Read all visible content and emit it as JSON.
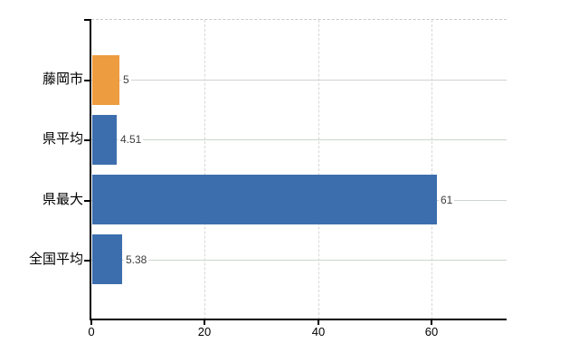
{
  "chart_data": {
    "type": "bar",
    "orientation": "horizontal",
    "title": "",
    "xlabel": "",
    "ylabel": "",
    "categories": [
      "藤岡市",
      "県平均",
      "県最大",
      "全国平均"
    ],
    "values": [
      5,
      4.51,
      61,
      5.38
    ],
    "value_labels": [
      "5",
      "4.51",
      "61",
      "5.38"
    ],
    "bar_colors": [
      "#EE9C40",
      "#3C6EAE",
      "#3C6EAE",
      "#3C6EAE"
    ],
    "x_ticks": [
      0,
      20,
      40,
      60
    ],
    "x_tick_labels": [
      "0",
      "20",
      "40",
      "60"
    ],
    "xlim": [
      0,
      73.2
    ],
    "grid": true,
    "legend": false,
    "colors": {
      "highlight_bar": "#EE9C40",
      "default_bar": "#3C6EAE",
      "axis": "#000000",
      "horizontal_gridline": "#CDD5CD",
      "vertical_gridline": "#D7D7D7",
      "top_border": "#C9C9C9",
      "value_label_text": "#3D3D3D",
      "category_label_text": "#000000",
      "background": "#FFFFFF"
    }
  }
}
